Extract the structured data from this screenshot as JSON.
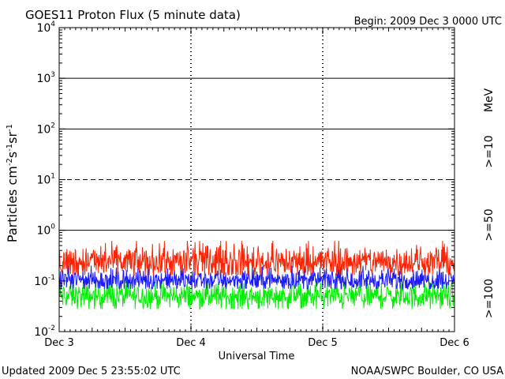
{
  "header": {
    "title": "GOES11 Proton Flux (5 minute data)",
    "begin": "Begin: 2009 Dec 3 0000 UTC"
  },
  "footer": {
    "updated": "Updated 2009 Dec  5 23:55:02 UTC",
    "source": "NOAA/SWPC Boulder, CO USA"
  },
  "colors": {
    "ge10": "#ff2200",
    "ge50": "#1a1aff",
    "ge100": "#00ee00",
    "axis": "#000000"
  },
  "chart_data": {
    "type": "line",
    "title": "GOES11 Proton Flux (5 minute data)",
    "xlabel": "Universal Time",
    "ylabel": "Particles cm-2s-1sr-1",
    "yscale": "log",
    "ylim": [
      0.01,
      10000
    ],
    "yticks": [
      {
        "base": "10",
        "exp": "4"
      },
      {
        "base": "10",
        "exp": "3"
      },
      {
        "base": "10",
        "exp": "2"
      },
      {
        "base": "10",
        "exp": "1"
      },
      {
        "base": "10",
        "exp": "0"
      },
      {
        "base": "10",
        "exp": "-1"
      },
      {
        "base": "10",
        "exp": "-2"
      }
    ],
    "x_tick_labels": [
      "Dec 3",
      "Dec 4",
      "Dec 5",
      "Dec 6"
    ],
    "xlim": [
      "2009-12-03 00:00",
      "2009-12-06 00:00"
    ],
    "grid": {
      "solid_decades": [
        1,
        100,
        1000
      ],
      "dashed_decades": [
        10
      ],
      "day_separators": "dashed"
    },
    "units_label": "MeV",
    "series": [
      {
        "name": ">=10",
        "color": "#ff2200",
        "level": 0.24,
        "min": 0.13,
        "max": 0.62
      },
      {
        "name": ">=50",
        "color": "#1a1aff",
        "level": 0.105,
        "min": 0.07,
        "max": 0.2
      },
      {
        "name": ">=100",
        "color": "#00ee00",
        "level": 0.05,
        "min": 0.028,
        "max": 0.1
      }
    ]
  }
}
